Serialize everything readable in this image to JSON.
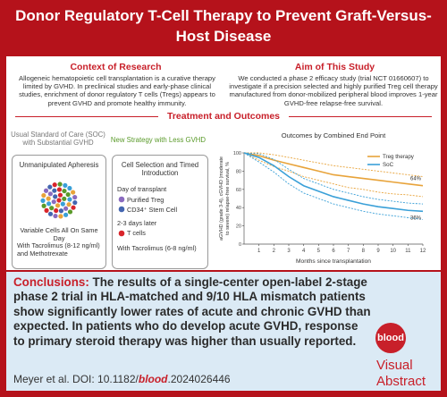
{
  "header": {
    "title": "Donor Regulatory T-Cell Therapy to Prevent Graft-Versus-Host Disease"
  },
  "context": {
    "heading": "Context of Research",
    "text": "Allogeneic hematopoietic cell transplantation is a curative therapy limited by GVHD. In preclinical studies and early-phase clinical studies, enrichment of donor regulatory T cells (Tregs) appears to prevent GVHD and promote healthy immunity."
  },
  "aim": {
    "heading": "Aim of This Study",
    "text": "We conducted a phase 2 efficacy study (trial NCT 01660607) to investigate if a precision selected and highly purified Treg cell therapy manufactured from donor-mobilized peripheral blood improves 1-year GVHD-free relapse-free survival."
  },
  "treatment": {
    "heading": "Treatment and Outcomes",
    "soc": {
      "caption": "Usual Standard of Care (SOC) with Substantial GVHD",
      "box_title": "Unmanipulated Apheresis",
      "cells": "Variable Cells All On Same Day",
      "drugs": "With Tacrolimus (8-12 ng/ml) and Methotrexate"
    },
    "new": {
      "caption": "New Strategy with Less GVHD",
      "box_title": "Cell Selection and Timed Introduction",
      "day0": "Day of transplant",
      "treg": "Purified Treg",
      "cd34": "CD34⁺ Stem Cell",
      "later": "2-3 days later",
      "tcells": "T cells",
      "drugs": "With Tacrolimus (6-8 ng/ml)"
    }
  },
  "chart_data": {
    "type": "line",
    "title": "Outcomes by Combined End Point",
    "y_label": [
      "aGVHD (grade 3-4), cGVHD (moderate",
      "to severe) relapse-free survival, %"
    ],
    "x_label": "Months since transplantation",
    "x": [
      0,
      1,
      2,
      3,
      4,
      5,
      6,
      7,
      8,
      9,
      10,
      11,
      12
    ],
    "xlim": [
      0,
      12
    ],
    "xticks": [
      1,
      2,
      3,
      4,
      5,
      6,
      7,
      8,
      9,
      10,
      11,
      12
    ],
    "ylim": [
      0,
      100
    ],
    "yticks": [
      0,
      20,
      40,
      60,
      80,
      100
    ],
    "series": [
      {
        "name": "Treg therapy",
        "color": "#e8a33a",
        "values": [
          100,
          97,
          92,
          88,
          84,
          80,
          76,
          74,
          72,
          70,
          68,
          66,
          64
        ],
        "lower": [
          100,
          92,
          85,
          80,
          74,
          70,
          66,
          62,
          60,
          57,
          55,
          54,
          52
        ],
        "upper": [
          100,
          100,
          98,
          95,
          92,
          89,
          86,
          84,
          82,
          80,
          78,
          76,
          74
        ],
        "end_label": "64%"
      },
      {
        "name": "SoC",
        "color": "#3aa0d8",
        "values": [
          100,
          95,
          86,
          74,
          64,
          58,
          52,
          48,
          44,
          41,
          39,
          37,
          36
        ],
        "lower": [
          100,
          90,
          79,
          66,
          56,
          50,
          44,
          40,
          36,
          33,
          31,
          29,
          27
        ],
        "upper": [
          100,
          99,
          93,
          82,
          72,
          66,
          60,
          56,
          52,
          49,
          47,
          45,
          44
        ],
        "end_label": "36%"
      }
    ]
  },
  "conclusions": {
    "label": "Conclusions:",
    "text": "The results of a single-center open-label 2-stage phase 2 trial in HLA-matched and 9/10 HLA mismatch patients show significantly lower rates of acute and chronic GVHD than expected. In patients who do develop acute GVHD, response to primary steroid therapy was higher than usually reported."
  },
  "citation": {
    "authors": "Meyer et al. DOI: 10.1182/",
    "journal": "blood",
    "doi_end": ".2024026446"
  },
  "logo": {
    "brand": "blood",
    "line1": "Visual",
    "line2": "Abstract"
  }
}
